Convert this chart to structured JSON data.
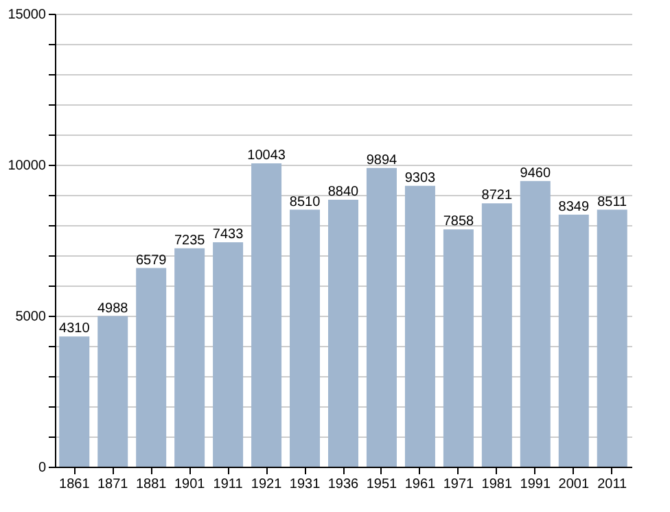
{
  "chart_data": {
    "type": "bar",
    "categories": [
      "1861",
      "1871",
      "1881",
      "1901",
      "1911",
      "1921",
      "1931",
      "1936",
      "1951",
      "1961",
      "1971",
      "1981",
      "1991",
      "2001",
      "2011"
    ],
    "values": [
      4310,
      4988,
      6579,
      7235,
      7433,
      10043,
      8510,
      8840,
      9894,
      9303,
      7858,
      8721,
      9460,
      8349,
      8511
    ],
    "color": "#a0b6cf",
    "ylim": [
      0,
      15000
    ],
    "yticks": [
      0,
      {
        "value": 1000,
        "label": null
      },
      {
        "value": 2000,
        "label": null
      },
      {
        "value": 3000,
        "label": null
      },
      {
        "value": 4000,
        "label": null
      },
      5000,
      {
        "value": 6000,
        "label": null
      },
      {
        "value": 7000,
        "label": null
      },
      {
        "value": 8000,
        "label": null
      },
      {
        "value": 9000,
        "label": null
      },
      10000,
      {
        "value": 11000,
        "label": null
      },
      {
        "value": 12000,
        "label": null
      },
      {
        "value": 13000,
        "label": null
      },
      {
        "value": 14000,
        "label": null
      },
      15000
    ],
    "grid": "y",
    "data_labels": true
  }
}
